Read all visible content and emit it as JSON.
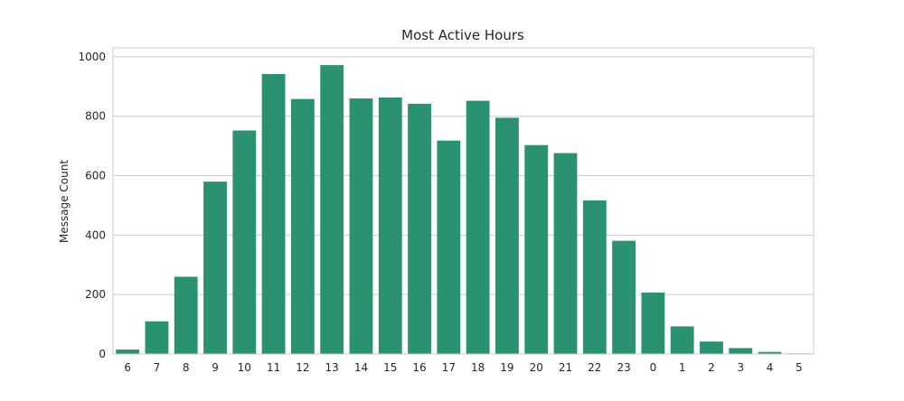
{
  "chart_data": {
    "type": "bar",
    "title": "Most Active Hours",
    "xlabel": "",
    "ylabel": "Message Count",
    "categories": [
      "6",
      "7",
      "8",
      "9",
      "10",
      "11",
      "12",
      "13",
      "14",
      "15",
      "16",
      "17",
      "18",
      "19",
      "20",
      "21",
      "22",
      "23",
      "0",
      "1",
      "2",
      "3",
      "4",
      "5"
    ],
    "values": [
      15,
      110,
      260,
      580,
      752,
      942,
      858,
      972,
      860,
      863,
      842,
      718,
      852,
      795,
      703,
      676,
      517,
      381,
      207,
      93,
      42,
      20,
      7,
      2
    ],
    "ylim": [
      0,
      1030
    ],
    "yticks": [
      0,
      200,
      400,
      600,
      800,
      1000
    ],
    "grid": true,
    "bar_color": "#2a9270",
    "grid_color": "#cccccc",
    "frame_color": "#cccccc"
  }
}
